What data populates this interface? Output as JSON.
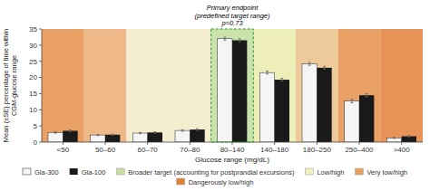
{
  "chart_data": {
    "type": "bar",
    "categories": [
      "<50",
      "50–60",
      "60–70",
      "70–80",
      "80–140",
      "140–180",
      "180–250",
      "250–400",
      ">400"
    ],
    "series": [
      {
        "name": "Gla-300",
        "color": "#f5f5f5",
        "edge_color": "#444444",
        "values": [
          3.0,
          2.2,
          2.8,
          3.6,
          32.0,
          21.5,
          24.2,
          12.7,
          1.3
        ],
        "errors": [
          0.25,
          0.18,
          0.2,
          0.25,
          0.45,
          0.45,
          0.45,
          0.5,
          0.15
        ]
      },
      {
        "name": "Gla-100",
        "color": "#1a1a1a",
        "values": [
          3.5,
          2.3,
          3.0,
          3.9,
          31.5,
          19.3,
          23.0,
          14.5,
          1.8
        ],
        "errors": [
          0.25,
          0.18,
          0.2,
          0.25,
          0.45,
          0.45,
          0.45,
          0.5,
          0.18
        ]
      }
    ],
    "xlabel": "Glucose range (mg/dL)",
    "ylabel": "Mean (±SE) percentage of time within\nCGM-glucose range",
    "ylim": [
      0,
      35
    ],
    "yticks": [
      0,
      5,
      10,
      15,
      20,
      25,
      30,
      35
    ],
    "grid": false,
    "legend": "bottom",
    "zone_colors": [
      "#e08030",
      "#e8a060",
      "#f0e8c0",
      "#f0e8c0",
      "#b8d890",
      "#e8e8a0",
      "#e8b878",
      "#e08030",
      "#e07020"
    ],
    "zone_legend": [
      {
        "name": "Broader target (accounting for postprandial excursions)",
        "color": "#c8dfa0"
      },
      {
        "name": "Low/high",
        "color": "#f0f0c0"
      },
      {
        "name": "Very low/high",
        "color": "#e8a060"
      },
      {
        "name": "Dangerously low/high",
        "color": "#e08030"
      }
    ],
    "annotations": [
      {
        "text": "Primary endpoint\n(predefined target range)\np=0.73",
        "category": "80–140"
      }
    ]
  }
}
